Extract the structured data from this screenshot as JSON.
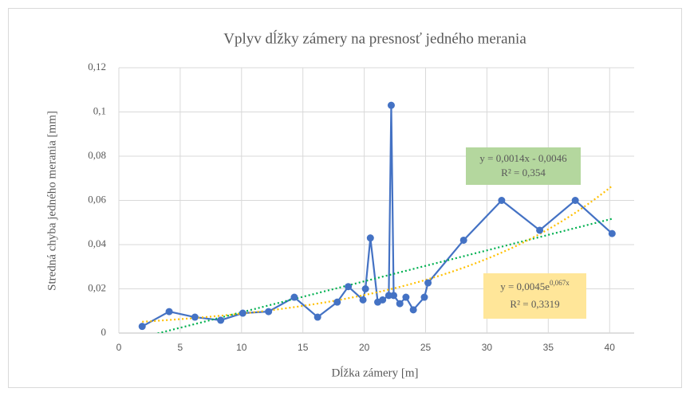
{
  "chart_data": {
    "type": "scatter",
    "title": "Vplyv dĺžky zámery na presnosť jedného merania",
    "x_label": "Dĺžka zámery  [m]",
    "y_label": "Stredná chyba jedného merania [mm]",
    "series": [
      {
        "color": "#4472c4",
        "x": [
          1.9,
          4.1,
          6.2,
          8.3,
          10.1,
          12.2,
          14.3,
          16.2,
          17.8,
          18.7,
          19.9,
          20.1,
          20.5,
          21.1,
          21.5,
          22.0,
          22.2,
          22.4,
          22.9,
          23.4,
          24.0,
          24.9,
          25.2,
          28.1,
          31.2,
          34.3,
          37.2,
          40.2
        ],
        "values": [
          0.003,
          0.0097,
          0.0072,
          0.0058,
          0.009,
          0.0097,
          0.0162,
          0.0072,
          0.014,
          0.021,
          0.015,
          0.02,
          0.043,
          0.014,
          0.015,
          0.017,
          0.103,
          0.017,
          0.0133,
          0.0162,
          0.0105,
          0.0162,
          0.0227,
          0.042,
          0.06,
          0.0465,
          0.06,
          0.045
        ]
      }
    ],
    "trendlines": [
      {
        "type": "linear",
        "color": "#00b050",
        "slope": 0.0014,
        "intercept": -0.0046,
        "label": "y = 0,0014x - 0,0046",
        "r2": 0.354,
        "r2_label": "R² = 0,354",
        "box_color": "#b4d79e"
      },
      {
        "type": "exponential",
        "color": "#ffc000",
        "coefficient": 0.0045,
        "exponent": 0.067,
        "label": "y = 0,0045e",
        "label_sup": "0,067x",
        "r2": 0.3319,
        "r2_label": "R² = 0,3319",
        "box_color": "#ffe699"
      }
    ],
    "xlim": [
      0,
      42
    ],
    "xticks": [
      0,
      5,
      10,
      15,
      20,
      25,
      30,
      35,
      40
    ],
    "ylim": [
      0,
      0.12
    ],
    "yticks": [
      0,
      {
        "value": 0.02,
        "label": "0,02"
      },
      {
        "value": 0.04,
        "label": "0,04"
      },
      {
        "value": 0.06,
        "label": "0,06"
      },
      {
        "value": 0.08,
        "label": "0,08"
      },
      {
        "value": 0.1,
        "label": "0,1"
      },
      {
        "value": 0.12,
        "label": "0,12"
      }
    ],
    "grid": true
  }
}
